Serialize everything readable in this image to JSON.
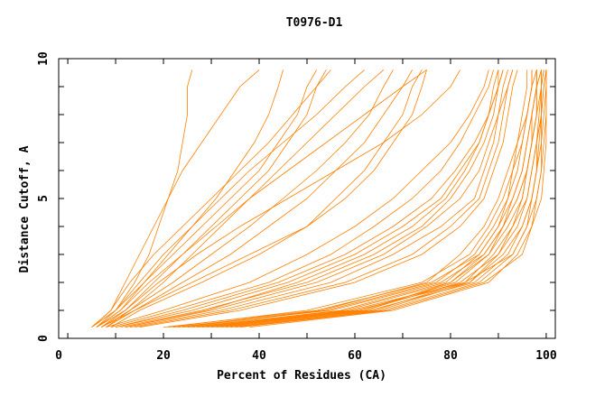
{
  "chart_data": {
    "type": "line",
    "title": "T0976-D1",
    "xlabel": "Percent of Residues (CA)",
    "ylabel": "Distance Cutoff, A",
    "xlim": [
      0,
      100
    ],
    "ylim": [
      0,
      10
    ],
    "xticks": [
      "0",
      "20",
      "40",
      "60",
      "80",
      "100"
    ],
    "xtick_values": [
      0,
      20,
      40,
      60,
      80,
      100
    ],
    "yticks": [
      "0",
      "5",
      "10"
    ],
    "ytick_values": [
      0,
      5,
      10
    ],
    "grid": false,
    "line_color": "#ff8000",
    "cutoffs": [
      0.4,
      1,
      2,
      3,
      4,
      5,
      6,
      7,
      8,
      9,
      9.6
    ],
    "series": [
      [
        30,
        62,
        82,
        90,
        94,
        96,
        97,
        98,
        99,
        99.5,
        100
      ],
      [
        25,
        58,
        80,
        88,
        92,
        95,
        96,
        97,
        98,
        99,
        99
      ],
      [
        35,
        66,
        86,
        93,
        96,
        98,
        99,
        99,
        99.5,
        100,
        100
      ],
      [
        22,
        55,
        78,
        87,
        91,
        94,
        96,
        97,
        98,
        98,
        99
      ],
      [
        28,
        60,
        84,
        91,
        95,
        97,
        98,
        99,
        99,
        99.5,
        100
      ],
      [
        33,
        64,
        83,
        89,
        93,
        96,
        97,
        98,
        98.5,
        99,
        99.5
      ],
      [
        20,
        52,
        76,
        86,
        90,
        93,
        95,
        96,
        97,
        98,
        98
      ],
      [
        38,
        68,
        88,
        94,
        97,
        99,
        99.5,
        100,
        100,
        100,
        100
      ],
      [
        26,
        57,
        79,
        86,
        90,
        92,
        94,
        95,
        96,
        97,
        97
      ],
      [
        31,
        63,
        85,
        92,
        95,
        97,
        98,
        98.5,
        99,
        99,
        99.5
      ],
      [
        24,
        54,
        77,
        85,
        89,
        92,
        93,
        94,
        96,
        97,
        98
      ],
      [
        36,
        67,
        87,
        95,
        97,
        98,
        99,
        99.5,
        100,
        100,
        100
      ],
      [
        29,
        61,
        81,
        88,
        91,
        93,
        95,
        96,
        97,
        98,
        98
      ],
      [
        21,
        50,
        74,
        84,
        88,
        91,
        93,
        95,
        96,
        97,
        97
      ],
      [
        34,
        65,
        84,
        90,
        93,
        95,
        96,
        97,
        98,
        98,
        99
      ],
      [
        27,
        59,
        83,
        93,
        96,
        97,
        98,
        98,
        99,
        99,
        99
      ],
      [
        23,
        53,
        75,
        82,
        87,
        90,
        92,
        94,
        95,
        96,
        96
      ],
      [
        32,
        62,
        80,
        87,
        91,
        94,
        96,
        97,
        97,
        98,
        98
      ],
      [
        12,
        30,
        52,
        66,
        75,
        82,
        86,
        88,
        90,
        92,
        93
      ],
      [
        10,
        26,
        46,
        60,
        70,
        78,
        82,
        86,
        88,
        90,
        91
      ],
      [
        14,
        34,
        58,
        72,
        80,
        86,
        88,
        90,
        91,
        92,
        93
      ],
      [
        9,
        22,
        42,
        55,
        64,
        72,
        78,
        82,
        85,
        88,
        89
      ],
      [
        11,
        28,
        50,
        64,
        74,
        80,
        84,
        87,
        89,
        90,
        91
      ],
      [
        13,
        32,
        55,
        68,
        78,
        85,
        87,
        89,
        90,
        91,
        92
      ],
      [
        8,
        20,
        38,
        50,
        60,
        68,
        74,
        80,
        84,
        87,
        88
      ],
      [
        15,
        36,
        60,
        74,
        82,
        87,
        89,
        91,
        92,
        93,
        94
      ],
      [
        10,
        24,
        44,
        58,
        68,
        76,
        81,
        85,
        88,
        90,
        90
      ],
      [
        12,
        29,
        48,
        62,
        72,
        79,
        83,
        86,
        88,
        89,
        90
      ],
      [
        5,
        10,
        14,
        17,
        19,
        21,
        23,
        24,
        25,
        25,
        26
      ],
      [
        6,
        12,
        18,
        24,
        30,
        36,
        42,
        46,
        50,
        52,
        54
      ],
      [
        7,
        13,
        22,
        30,
        38,
        45,
        52,
        58,
        63,
        66,
        68
      ],
      [
        5,
        9,
        13,
        18,
        24,
        30,
        36,
        42,
        47,
        52,
        55
      ],
      [
        8,
        14,
        24,
        34,
        42,
        50,
        56,
        62,
        66,
        70,
        72
      ],
      [
        6,
        11,
        16,
        22,
        28,
        34,
        40,
        44,
        48,
        50,
        52
      ],
      [
        7,
        14,
        26,
        38,
        50,
        58,
        64,
        68,
        72,
        74,
        75
      ],
      [
        5,
        10,
        15,
        20,
        26,
        32,
        38,
        45,
        52,
        58,
        62
      ],
      [
        9,
        15,
        28,
        40,
        50,
        56,
        62,
        66,
        70,
        72,
        74
      ],
      [
        6,
        11,
        17,
        24,
        31,
        38,
        46,
        54,
        62,
        70,
        75
      ],
      [
        8,
        13,
        20,
        26,
        32,
        38,
        44,
        50,
        56,
        62,
        66
      ],
      [
        5,
        9,
        12,
        15,
        18,
        21,
        24,
        28,
        32,
        36,
        40
      ],
      [
        7,
        12,
        19,
        27,
        36,
        46,
        56,
        66,
        74,
        80,
        82
      ],
      [
        6,
        10,
        16,
        21,
        26,
        31,
        35,
        39,
        42,
        44,
        45
      ]
    ]
  }
}
